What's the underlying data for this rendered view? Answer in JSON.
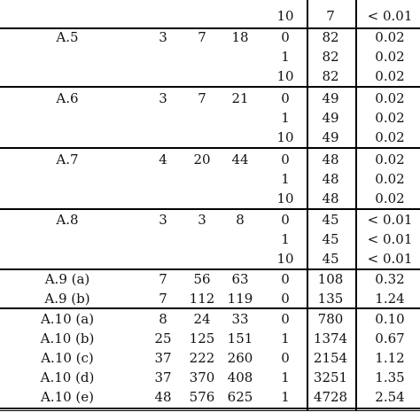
{
  "table": {
    "top_partial": {
      "cells": [
        "10",
        "7",
        "< 0.01"
      ]
    },
    "groups": [
      {
        "label": "A.5",
        "params": [
          "3",
          "7",
          "18"
        ],
        "rows": [
          [
            "0",
            "82",
            "0.02"
          ],
          [
            "1",
            "82",
            "0.02"
          ],
          [
            "10",
            "82",
            "0.02"
          ]
        ]
      },
      {
        "label": "A.6",
        "params": [
          "3",
          "7",
          "21"
        ],
        "rows": [
          [
            "0",
            "49",
            "0.02"
          ],
          [
            "1",
            "49",
            "0.02"
          ],
          [
            "10",
            "49",
            "0.02"
          ]
        ]
      },
      {
        "label": "A.7",
        "params": [
          "4",
          "20",
          "44"
        ],
        "rows": [
          [
            "0",
            "48",
            "0.02"
          ],
          [
            "1",
            "48",
            "0.02"
          ],
          [
            "10",
            "48",
            "0.02"
          ]
        ]
      },
      {
        "label": "A.8",
        "params": [
          "3",
          "3",
          "8"
        ],
        "rows": [
          [
            "0",
            "45",
            "< 0.01"
          ],
          [
            "1",
            "45",
            "< 0.01"
          ],
          [
            "10",
            "45",
            "< 0.01"
          ]
        ]
      }
    ],
    "single_rows": [
      [
        "A.9 (a)",
        "7",
        "56",
        "63",
        "0",
        "108",
        "0.32"
      ],
      [
        "A.9 (b)",
        "7",
        "112",
        "119",
        "0",
        "135",
        "1.24"
      ],
      [
        "A.10 (a)",
        "8",
        "24",
        "33",
        "0",
        "780",
        "0.10"
      ],
      [
        "A.10 (b)",
        "25",
        "125",
        "151",
        "1",
        "1374",
        "0.67"
      ],
      [
        "A.10 (c)",
        "37",
        "222",
        "260",
        "0",
        "2154",
        "1.12"
      ],
      [
        "A.10 (d)",
        "37",
        "370",
        "408",
        "1",
        "3251",
        "1.35"
      ],
      [
        "A.10 (e)",
        "48",
        "576",
        "625",
        "1",
        "4728",
        "2.54"
      ]
    ]
  }
}
